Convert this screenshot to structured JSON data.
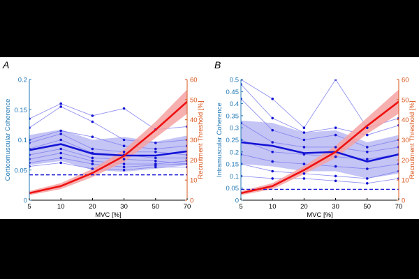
{
  "colors": {
    "left_axis": "#1f77b4",
    "right_axis": "#d9541a",
    "mean": "#1414d6",
    "individual": "#7f7ff0",
    "band": "#b0b0f2",
    "points": "#1414d6",
    "threshold": "#ee1111",
    "threshold_band": "#f4a2a2",
    "baseline": "#1414d6"
  },
  "chart_data": [
    {
      "panel_label": "A",
      "type": "line",
      "categories": [
        "5",
        "10",
        "20",
        "30",
        "50",
        "70"
      ],
      "xlabel": "MVC [%]",
      "ylabel": "Corticomuscular Coherence",
      "ylim": [
        0,
        0.2
      ],
      "yticks": [
        "0",
        "0.05",
        "0.1",
        "0.15",
        "0.2"
      ],
      "y2label": "Recruitment Threshold [%]",
      "y2lim": [
        0,
        60
      ],
      "y2ticks": [
        "0",
        "10",
        "20",
        "30",
        "40",
        "50",
        "60"
      ],
      "grid": false,
      "mean": [
        0.083,
        0.093,
        0.077,
        0.074,
        0.074,
        0.081
      ],
      "band_upper": [
        0.108,
        0.117,
        0.1,
        0.105,
        0.097,
        0.107
      ],
      "band_lower": [
        0.058,
        0.065,
        0.05,
        0.047,
        0.052,
        0.058
      ],
      "baseline": 0.042,
      "individual": [
        [
          0.135,
          0.16,
          0.14,
          0.152,
          0.117,
          0.122
        ],
        [
          0.12,
          0.155,
          0.13,
          0.1,
          0.095,
          0.1
        ],
        [
          0.1,
          0.115,
          0.105,
          0.09,
          0.085,
          0.09
        ],
        [
          0.095,
          0.11,
          0.085,
          0.08,
          0.08,
          0.075
        ],
        [
          0.085,
          0.1,
          0.078,
          0.075,
          0.07,
          0.07
        ],
        [
          0.075,
          0.085,
          0.07,
          0.068,
          0.065,
          0.06
        ],
        [
          0.068,
          0.078,
          0.065,
          0.06,
          0.06,
          0.065
        ],
        [
          0.062,
          0.07,
          0.06,
          0.055,
          0.058,
          0.06
        ],
        [
          0.056,
          0.062,
          0.052,
          0.05,
          0.055,
          0.055
        ]
      ],
      "threshold": [
        3.5,
        7,
        13.5,
        22,
        35,
        49
      ],
      "threshold_upper": [
        4.5,
        8.5,
        15.5,
        25,
        39,
        55
      ],
      "threshold_lower": [
        2.5,
        5.5,
        11.5,
        19,
        31,
        43
      ]
    },
    {
      "panel_label": "B",
      "type": "line",
      "categories": [
        "5",
        "10",
        "20",
        "30",
        "50",
        "70"
      ],
      "xlabel": "MVC [%]",
      "ylabel": "Intramuscular Coherence",
      "ylim": [
        0,
        0.5
      ],
      "yticks": [
        "0",
        "0.05",
        "0.1",
        "0.15",
        "0.2",
        "0.25",
        "0.3",
        "0.35",
        "0.4",
        "0.45",
        "0.5"
      ],
      "y2label": "Recruitment Threshold [%]",
      "y2lim": [
        0,
        60
      ],
      "y2ticks": [
        "0",
        "10",
        "20",
        "30",
        "40",
        "50",
        "60"
      ],
      "grid": false,
      "mean": [
        0.24,
        0.225,
        0.195,
        0.2,
        0.16,
        0.19
      ],
      "band_upper": [
        0.33,
        0.32,
        0.28,
        0.29,
        0.24,
        0.27
      ],
      "band_lower": [
        0.15,
        0.14,
        0.12,
        0.12,
        0.09,
        0.11
      ],
      "baseline": 0.045,
      "individual": [
        [
          0.55,
          0.42,
          0.3,
          0.5,
          0.3,
          0.34
        ],
        [
          0.48,
          0.34,
          0.28,
          0.3,
          0.27,
          0.31
        ],
        [
          0.42,
          0.29,
          0.25,
          0.27,
          0.22,
          0.25
        ],
        [
          0.32,
          0.24,
          0.22,
          0.22,
          0.2,
          0.22
        ],
        [
          0.25,
          0.2,
          0.19,
          0.18,
          0.17,
          0.19
        ],
        [
          0.19,
          0.16,
          0.15,
          0.14,
          0.13,
          0.15
        ],
        [
          0.15,
          0.12,
          0.11,
          0.1,
          0.09,
          0.12
        ],
        [
          0.1,
          0.09,
          0.09,
          0.08,
          0.07,
          0.09
        ]
      ],
      "threshold": [
        3.5,
        7,
        15,
        24,
        37,
        49
      ],
      "threshold_upper": [
        4.5,
        8.5,
        17,
        27,
        41,
        55
      ],
      "threshold_lower": [
        2.5,
        5.5,
        13,
        21,
        33,
        43
      ]
    }
  ]
}
